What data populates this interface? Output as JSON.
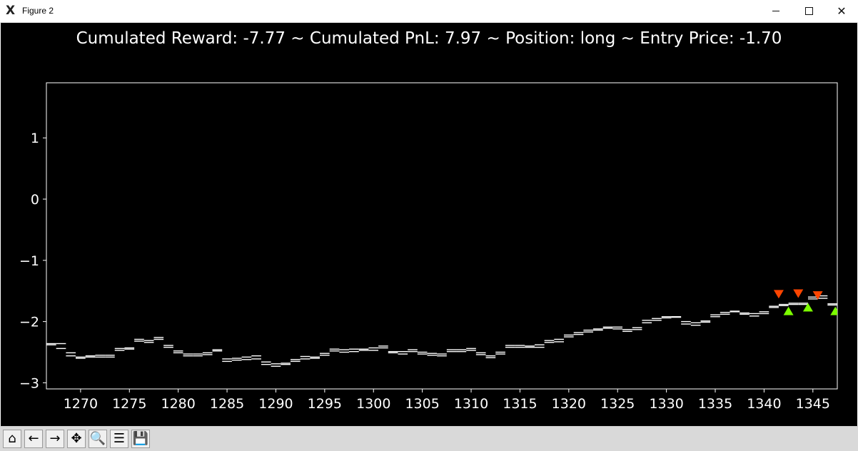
{
  "window": {
    "title": "Figure 2",
    "icon": "matplotlib-x-icon",
    "controls": [
      "minimize-icon",
      "maximize-icon",
      "close-icon"
    ]
  },
  "toolbar": {
    "buttons": [
      {
        "name": "home-icon",
        "glyph": "⌂"
      },
      {
        "name": "back-arrow-icon",
        "glyph": "←"
      },
      {
        "name": "forward-arrow-icon",
        "glyph": "→"
      },
      {
        "name": "pan-icon",
        "glyph": "✥"
      },
      {
        "name": "zoom-icon",
        "glyph": "🔍"
      },
      {
        "name": "configure-subplots-icon",
        "glyph": "☰"
      },
      {
        "name": "save-icon",
        "glyph": "💾"
      }
    ]
  },
  "chart_data": {
    "type": "line",
    "title": "Cumulated Reward: -7.77 ~ Cumulated PnL: 7.97 ~ Position: long ~ Entry Price: -1.70",
    "xlabel": "",
    "ylabel": "",
    "xlim": [
      1266.5,
      1347.5
    ],
    "ylim": [
      -3.1,
      1.9
    ],
    "xticks": [
      1270,
      1275,
      1280,
      1285,
      1290,
      1295,
      1300,
      1305,
      1310,
      1315,
      1320,
      1325,
      1330,
      1335,
      1340,
      1345
    ],
    "yticks": [
      1,
      0,
      -1,
      -2,
      -3
    ],
    "ytick_labels": [
      "1",
      "0",
      "−1",
      "−2",
      "−3"
    ],
    "grid": false,
    "style": "step segments, bid/ask pairs",
    "x": [
      1267,
      1268,
      1269,
      1270,
      1271,
      1272,
      1273,
      1274,
      1275,
      1276,
      1277,
      1278,
      1279,
      1280,
      1281,
      1282,
      1283,
      1284,
      1285,
      1286,
      1287,
      1288,
      1289,
      1290,
      1291,
      1292,
      1293,
      1294,
      1295,
      1296,
      1297,
      1298,
      1299,
      1300,
      1301,
      1302,
      1303,
      1304,
      1305,
      1306,
      1307,
      1308,
      1309,
      1310,
      1311,
      1312,
      1313,
      1314,
      1315,
      1316,
      1317,
      1318,
      1319,
      1320,
      1321,
      1322,
      1323,
      1324,
      1325,
      1326,
      1327,
      1328,
      1329,
      1330,
      1331,
      1332,
      1333,
      1334,
      1335,
      1336,
      1337,
      1338,
      1339,
      1340,
      1341,
      1342,
      1343,
      1344,
      1345,
      1346,
      1347
    ],
    "series": [
      {
        "role": "upper",
        "color": "#ffffff",
        "values": [
          -2.36,
          -2.36,
          -2.51,
          -2.58,
          -2.56,
          -2.55,
          -2.55,
          -2.44,
          -2.43,
          -2.29,
          -2.31,
          -2.26,
          -2.39,
          -2.48,
          -2.53,
          -2.53,
          -2.51,
          -2.46,
          -2.61,
          -2.6,
          -2.58,
          -2.56,
          -2.66,
          -2.69,
          -2.68,
          -2.62,
          -2.57,
          -2.58,
          -2.52,
          -2.45,
          -2.46,
          -2.45,
          -2.45,
          -2.43,
          -2.4,
          -2.49,
          -2.49,
          -2.46,
          -2.5,
          -2.52,
          -2.53,
          -2.46,
          -2.46,
          -2.44,
          -2.51,
          -2.56,
          -2.5,
          -2.39,
          -2.39,
          -2.4,
          -2.38,
          -2.31,
          -2.29,
          -2.22,
          -2.18,
          -2.14,
          -2.12,
          -2.09,
          -2.09,
          -2.13,
          -2.1,
          -1.98,
          -1.95,
          -1.92,
          -1.92,
          -2.0,
          -2.02,
          -1.99,
          -1.89,
          -1.85,
          -1.83,
          -1.86,
          -1.87,
          -1.84,
          -1.75,
          -1.72,
          -1.7,
          -1.7,
          -1.6,
          -1.58,
          -1.73
        ]
      },
      {
        "role": "lower",
        "color": "#ffffff",
        "values": [
          -2.38,
          -2.44,
          -2.56,
          -2.6,
          -2.58,
          -2.58,
          -2.58,
          -2.47,
          -2.45,
          -2.32,
          -2.34,
          -2.29,
          -2.42,
          -2.51,
          -2.56,
          -2.56,
          -2.54,
          -2.48,
          -2.65,
          -2.63,
          -2.62,
          -2.61,
          -2.7,
          -2.73,
          -2.7,
          -2.65,
          -2.61,
          -2.6,
          -2.55,
          -2.48,
          -2.5,
          -2.49,
          -2.47,
          -2.47,
          -2.43,
          -2.51,
          -2.53,
          -2.49,
          -2.53,
          -2.55,
          -2.56,
          -2.49,
          -2.49,
          -2.47,
          -2.54,
          -2.59,
          -2.53,
          -2.42,
          -2.42,
          -2.42,
          -2.42,
          -2.34,
          -2.33,
          -2.25,
          -2.21,
          -2.17,
          -2.14,
          -2.11,
          -2.12,
          -2.16,
          -2.13,
          -2.02,
          -1.98,
          -1.94,
          -1.93,
          -2.04,
          -2.06,
          -2.01,
          -1.92,
          -1.88,
          -1.84,
          -1.88,
          -1.91,
          -1.87,
          -1.77,
          -1.74,
          -1.72,
          -1.72,
          -1.63,
          -1.62,
          -1.71
        ]
      }
    ],
    "markers": [
      {
        "type": "sell",
        "symbol": "triangle-down",
        "color": "#ff4500",
        "points": [
          [
            1341.5,
            -1.55
          ],
          [
            1343.5,
            -1.54
          ],
          [
            1345.5,
            -1.57
          ]
        ]
      },
      {
        "type": "buy",
        "symbol": "triangle-up",
        "color": "#7cfc00",
        "points": [
          [
            1342.5,
            -1.83
          ],
          [
            1344.5,
            -1.77
          ],
          [
            1347.3,
            -1.83
          ]
        ]
      }
    ],
    "colors": {
      "background": "#000000",
      "axes": "#ffffff",
      "text": "#ffffff"
    }
  }
}
